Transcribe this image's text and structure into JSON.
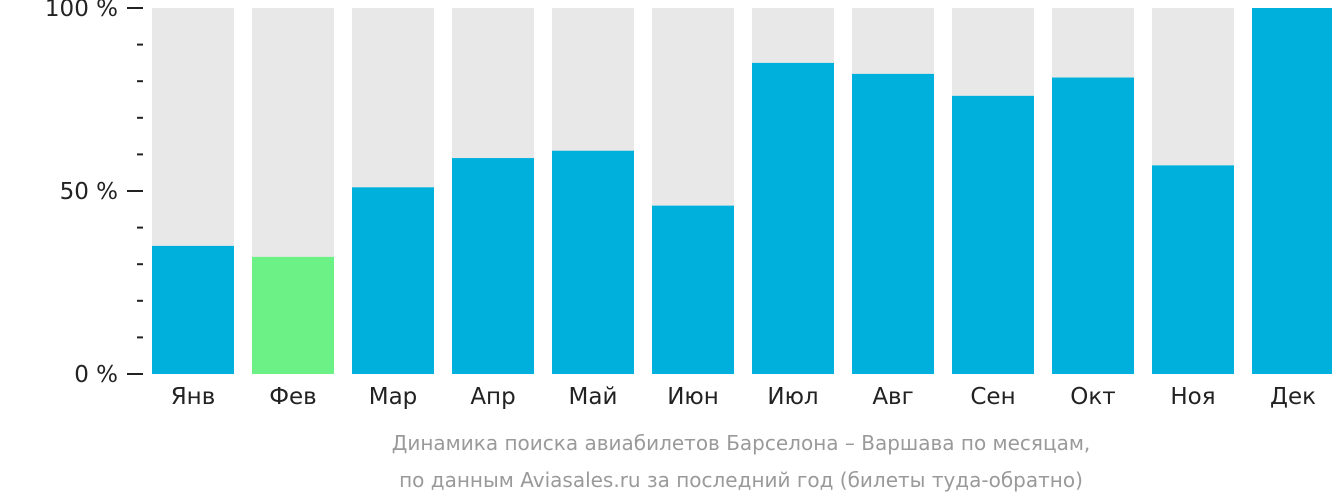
{
  "chart_data": {
    "type": "bar",
    "categories": [
      "Янв",
      "Фев",
      "Мар",
      "Апр",
      "Май",
      "Июн",
      "Июл",
      "Авг",
      "Сен",
      "Окт",
      "Ноя",
      "Дек"
    ],
    "values": [
      35,
      32,
      51,
      59,
      61,
      46,
      85,
      82,
      76,
      81,
      57,
      100
    ],
    "ylim": [
      0,
      100
    ],
    "y_ticks": [
      {
        "value": 100,
        "label": "100 %"
      },
      {
        "value": 50,
        "label": "50 %"
      },
      {
        "value": 0,
        "label": "0 %"
      }
    ],
    "minor_tick_step": 10,
    "title": "",
    "xlabel": "",
    "ylabel": "",
    "grid": false,
    "highlight_category": "Фев",
    "colors": {
      "bar": "#00b0dc",
      "highlight": "#6cf187",
      "background_bar": "#e8e8e8",
      "axis": "#222222"
    }
  },
  "caption": {
    "line1": "Динамика поиска авиабилетов Барселона – Варшава по месяцам,",
    "line2": "по данным Aviasales.ru за последний год (билеты туда-обратно)"
  }
}
